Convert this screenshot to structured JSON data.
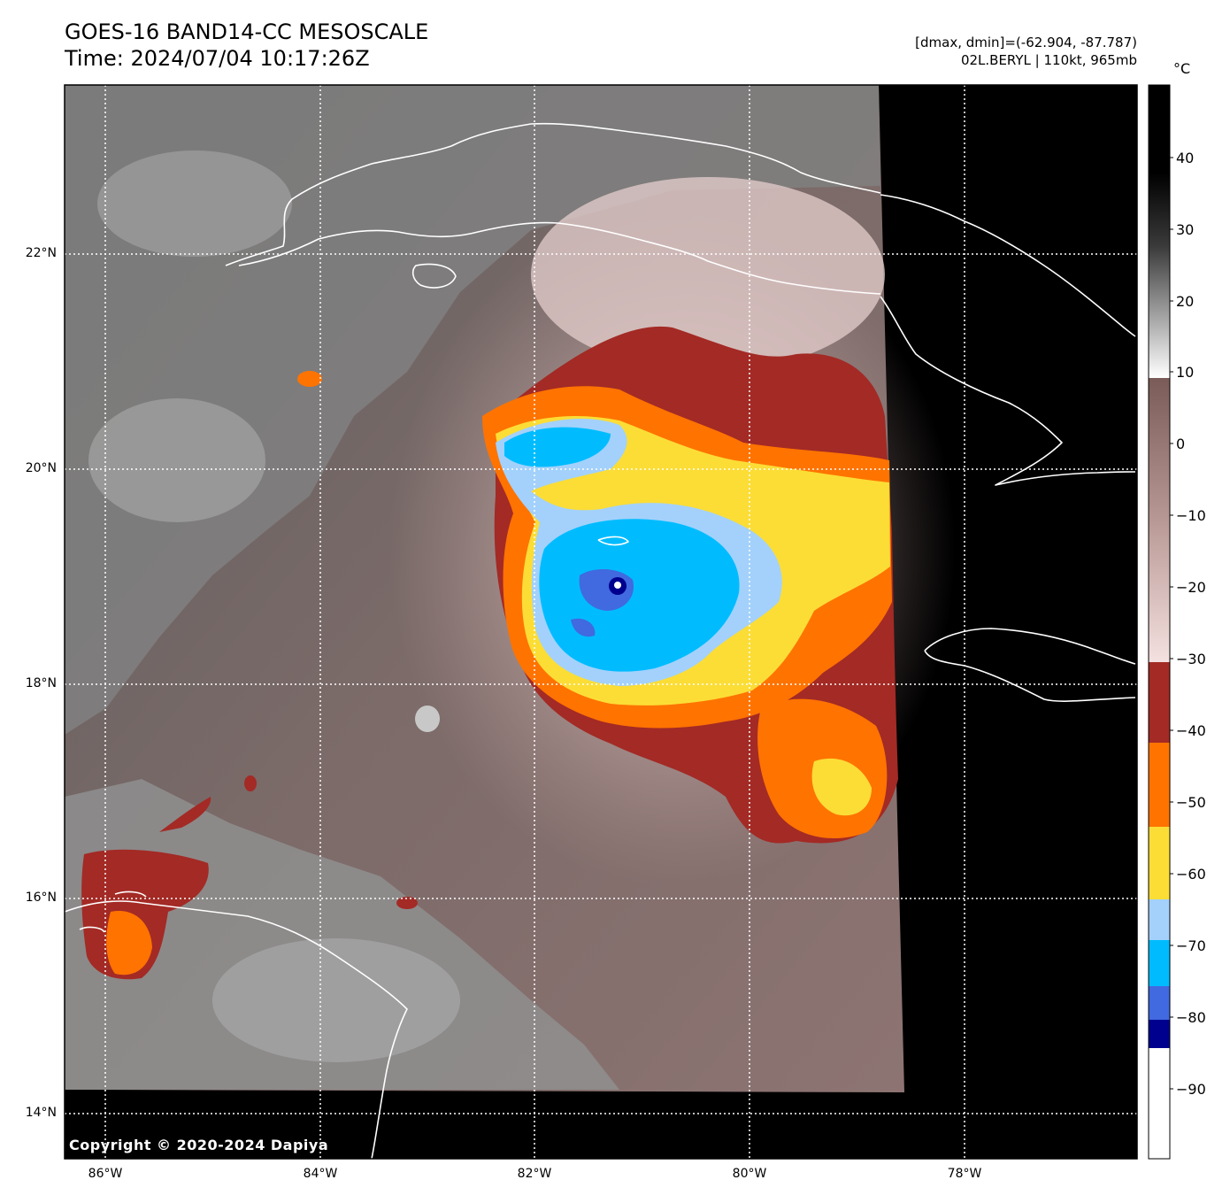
{
  "header": {
    "title_line1": "GOES-16 BAND14-CC MESOSCALE",
    "title_line2": "Time: 2024/07/04 10:17:26Z",
    "info_line1": "[dmax, dmin]=(-62.904, -87.787)",
    "info_line2": "02L.BERYL | 110kt, 965mb"
  },
  "map": {
    "lat_labels": [
      "22°N",
      "20°N",
      "18°N",
      "16°N",
      "14°N"
    ],
    "lon_labels": [
      "86°W",
      "84°W",
      "82°W",
      "80°W",
      "78°W"
    ],
    "copyright": "Copyright © 2020-2024 Dapiya",
    "storm": {
      "name": "02L.BERYL",
      "eye_lat": 18.9,
      "eye_lon": -81.3
    }
  },
  "colorbar": {
    "unit": "°C",
    "ticks": [
      "40",
      "30",
      "20",
      "10",
      "0",
      "−10",
      "−20",
      "−30",
      "−40",
      "−50",
      "−60",
      "−70",
      "−80",
      "−90"
    ],
    "colors": {
      "gray_warm": "#000000",
      "gray_cool": "#ffffff",
      "brown_top": "#7a5b57",
      "brown_bottom": "#f4e1e0",
      "dark_red": "#a32a25",
      "orange": "#ff7300",
      "yellow": "#fbdd36",
      "light_blue": "#a3d1fb",
      "cyan": "#00bcff",
      "royal_blue": "#4169e0",
      "navy": "#00008f",
      "white": "#ffffff"
    }
  }
}
